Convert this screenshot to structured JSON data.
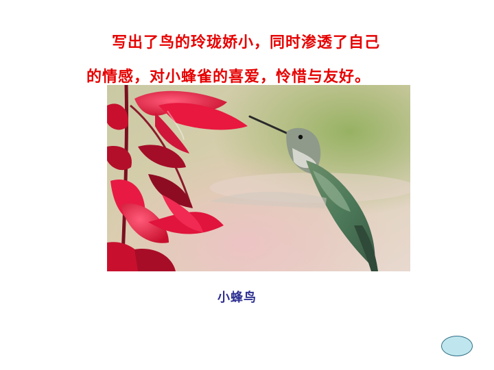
{
  "slide": {
    "text_lines": [
      "写出了鸟的玲珑娇小，同时渗透了自己",
      "的情感，对小蜂雀的喜爱，怜惜与友好。"
    ],
    "caption": "小蜂鸟"
  },
  "colors": {
    "body_text": "#e60000",
    "caption_text": "#2e3192",
    "nav_button_fill": "#bfe6ee",
    "nav_button_border": "#2f6f86"
  }
}
